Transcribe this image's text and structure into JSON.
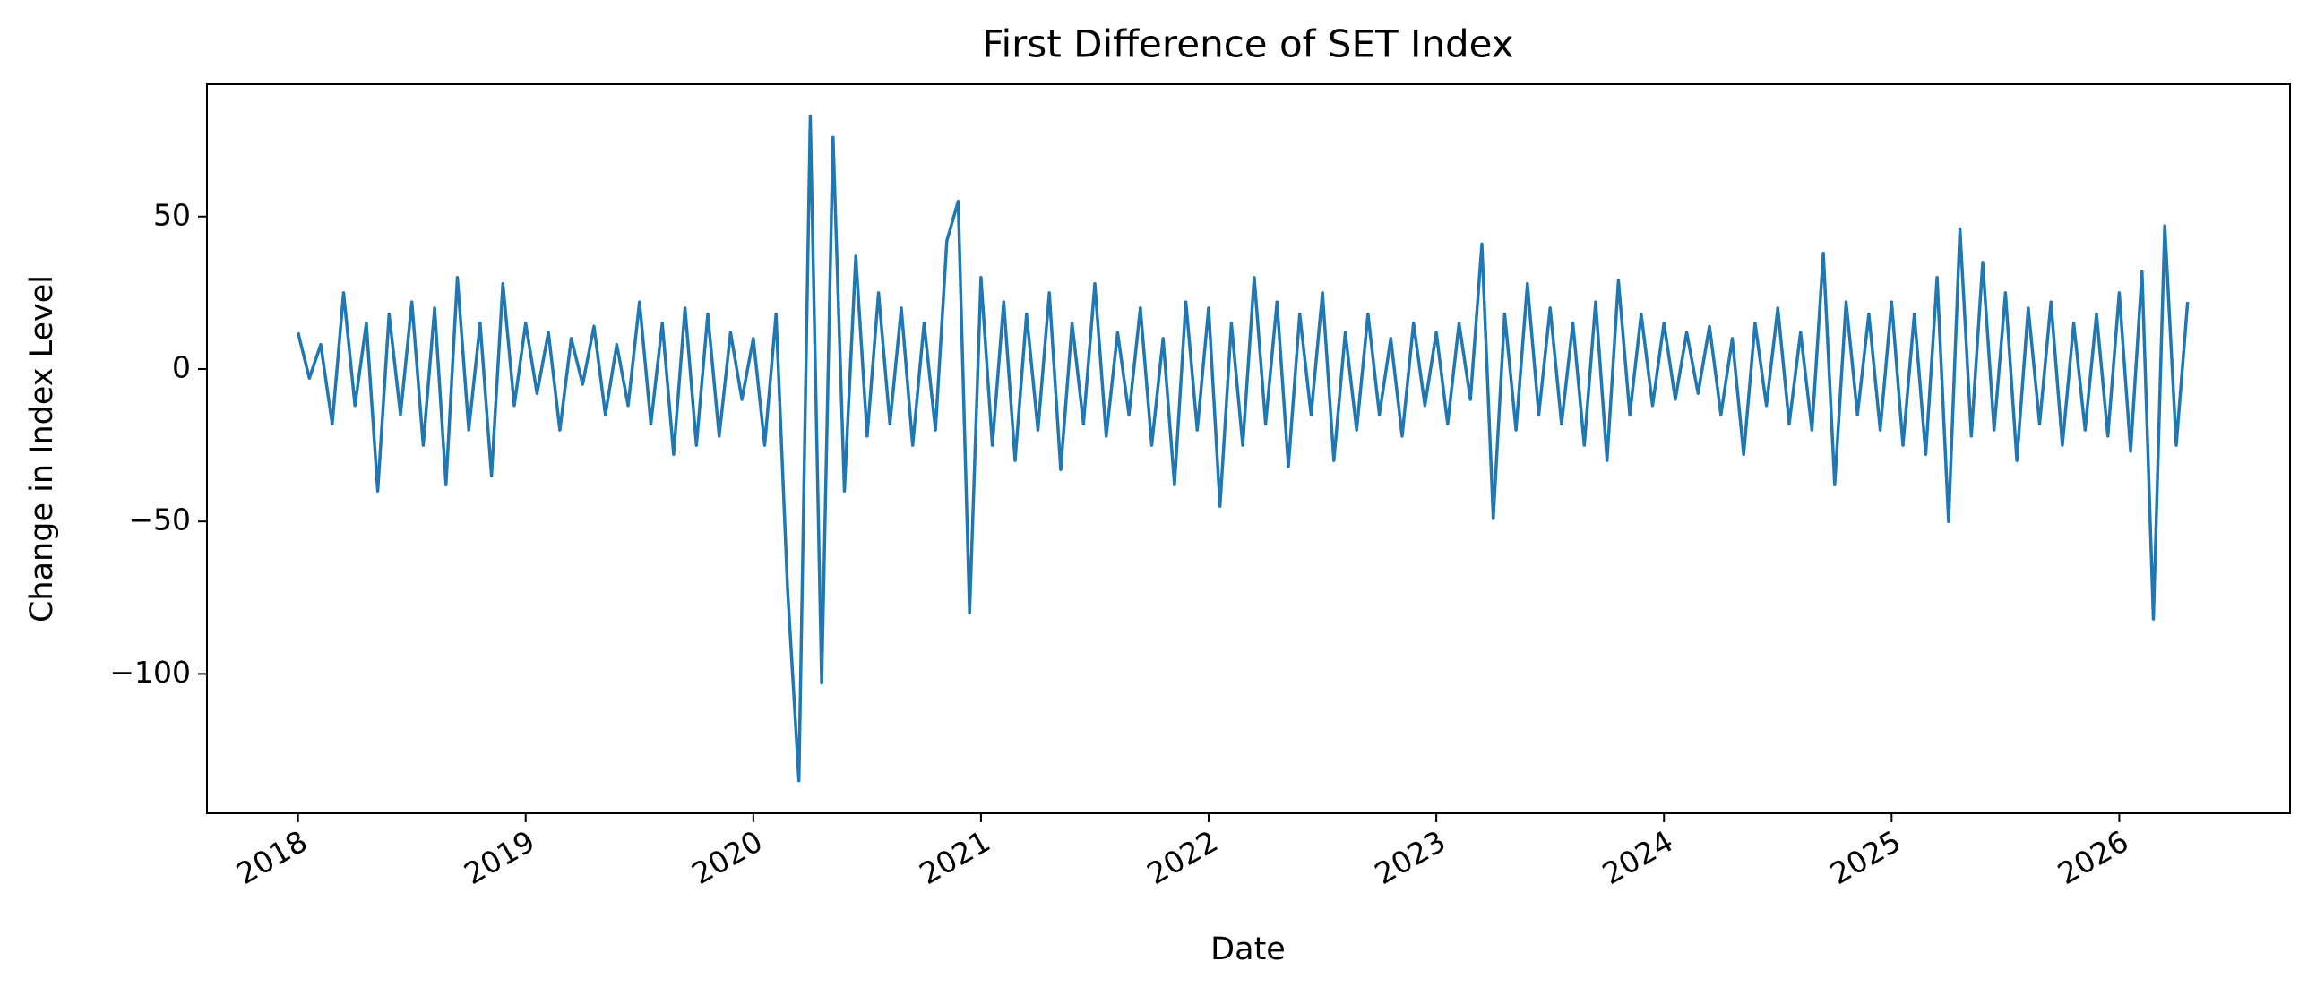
{
  "chart_data": {
    "type": "line",
    "title": "First Difference of SET Index",
    "x_label": "Date",
    "y_label": "Change in Index Level",
    "color": "#1f77b4",
    "x": [
      2018.0,
      2018.05,
      2018.1,
      2018.15,
      2018.2,
      2018.25,
      2018.3,
      2018.35,
      2018.4,
      2018.45,
      2018.5,
      2018.55,
      2018.6,
      2018.65,
      2018.7,
      2018.75,
      2018.8,
      2018.85,
      2018.9,
      2018.95,
      2019.0,
      2019.05,
      2019.1,
      2019.15,
      2019.2,
      2019.25,
      2019.3,
      2019.35,
      2019.4,
      2019.45,
      2019.5,
      2019.55,
      2019.6,
      2019.65,
      2019.7,
      2019.75,
      2019.8,
      2019.85,
      2019.9,
      2019.95,
      2020.0,
      2020.05,
      2020.1,
      2020.15,
      2020.2,
      2020.25,
      2020.3,
      2020.35,
      2020.4,
      2020.45,
      2020.5,
      2020.55,
      2020.6,
      2020.65,
      2020.7,
      2020.75,
      2020.8,
      2020.85,
      2020.9,
      2020.95,
      2021.0,
      2021.05,
      2021.1,
      2021.15,
      2021.2,
      2021.25,
      2021.3,
      2021.35,
      2021.4,
      2021.45,
      2021.5,
      2021.55,
      2021.6,
      2021.65,
      2021.7,
      2021.75,
      2021.8,
      2021.85,
      2021.9,
      2021.95,
      2022.0,
      2022.05,
      2022.1,
      2022.15,
      2022.2,
      2022.25,
      2022.3,
      2022.35,
      2022.4,
      2022.45,
      2022.5,
      2022.55,
      2022.6,
      2022.65,
      2022.7,
      2022.75,
      2022.8,
      2022.85,
      2022.9,
      2022.95,
      2023.0,
      2023.05,
      2023.1,
      2023.15,
      2023.2,
      2023.25,
      2023.3,
      2023.35,
      2023.4,
      2023.45,
      2023.5,
      2023.55,
      2023.6,
      2023.65,
      2023.7,
      2023.75,
      2023.8,
      2023.85,
      2023.9,
      2023.95,
      2024.0,
      2024.05,
      2024.1,
      2024.15,
      2024.2,
      2024.25,
      2024.3,
      2024.35,
      2024.4,
      2024.45,
      2024.5,
      2024.55,
      2024.6,
      2024.65,
      2024.7,
      2024.75,
      2024.8,
      2024.85,
      2024.9,
      2024.95,
      2025.0,
      2025.05,
      2025.1,
      2025.15,
      2025.2,
      2025.25,
      2025.3,
      2025.35,
      2025.4,
      2025.45,
      2025.5,
      2025.55,
      2025.6,
      2025.65,
      2025.7,
      2025.75,
      2025.8,
      2025.85,
      2025.9,
      2025.95,
      2026.0,
      2026.05,
      2026.1,
      2026.15,
      2026.2,
      2026.25,
      2026.3
    ],
    "values": [
      12,
      -3,
      8,
      -18,
      25,
      -12,
      15,
      -40,
      18,
      -15,
      22,
      -25,
      20,
      -38,
      30,
      -20,
      15,
      -35,
      28,
      -12,
      15,
      -8,
      12,
      -20,
      10,
      -5,
      14,
      -15,
      8,
      -12,
      22,
      -18,
      15,
      -28,
      20,
      -25,
      18,
      -22,
      12,
      -10,
      10,
      -25,
      18,
      -72,
      -135,
      83,
      -103,
      76,
      -40,
      37,
      -22,
      25,
      -18,
      20,
      -25,
      15,
      -20,
      42,
      55,
      -80,
      30,
      -25,
      22,
      -30,
      18,
      -20,
      25,
      -33,
      15,
      -18,
      28,
      -22,
      12,
      -15,
      20,
      -25,
      10,
      -38,
      22,
      -20,
      20,
      -45,
      15,
      -25,
      30,
      -18,
      22,
      -32,
      18,
      -15,
      25,
      -30,
      12,
      -20,
      18,
      -15,
      10,
      -22,
      15,
      -12,
      12,
      -18,
      15,
      -10,
      41,
      -49,
      18,
      -20,
      28,
      -15,
      20,
      -18,
      15,
      -25,
      22,
      -30,
      29,
      -15,
      18,
      -12,
      15,
      -10,
      12,
      -8,
      14,
      -15,
      10,
      -28,
      15,
      -12,
      20,
      -18,
      12,
      -20,
      38,
      -38,
      22,
      -15,
      18,
      -20,
      22,
      -25,
      18,
      -28,
      30,
      -50,
      46,
      -22,
      35,
      -20,
      25,
      -30,
      20,
      -18,
      22,
      -25,
      15,
      -20,
      18,
      -22,
      25,
      -27,
      32,
      -82,
      47,
      -25,
      22
    ],
    "xlim": [
      2017.6,
      2026.75
    ],
    "xticks": [
      2018,
      2019,
      2020,
      2021,
      2022,
      2023,
      2024,
      2025,
      2026
    ],
    "ylim": [
      -145.7,
      93.4
    ],
    "yticks": [
      {
        "value": -100,
        "label": "−100"
      },
      {
        "value": -50,
        "label": "−50"
      },
      0,
      50
    ]
  }
}
